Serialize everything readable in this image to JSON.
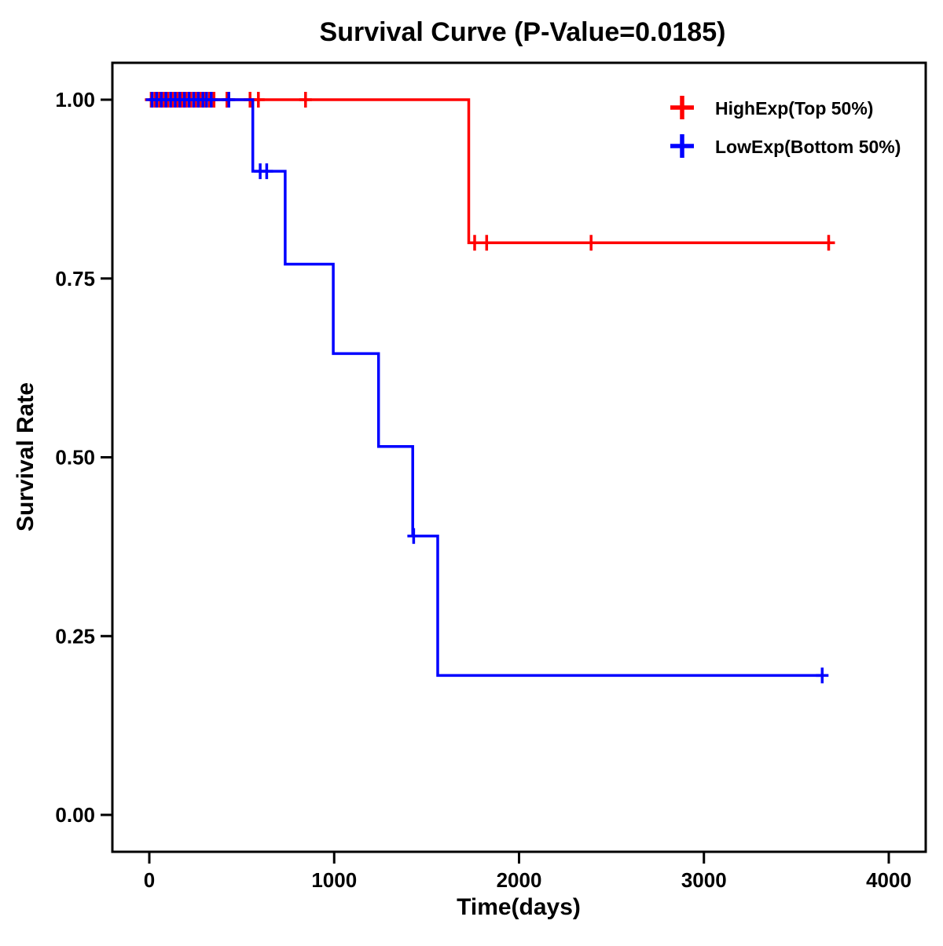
{
  "chart_data": {
    "type": "line",
    "subtype": "kaplan-meier-step",
    "title": "Survival Curve (P-Value=0.0185)",
    "xlabel": "Time(days)",
    "ylabel": "Survival Rate",
    "xlim": [
      -230,
      4200
    ],
    "ylim": [
      -0.05,
      1.06
    ],
    "grid": false,
    "legend_position": "top-right",
    "x_ticks": [
      {
        "value": 0,
        "label": "0"
      },
      {
        "value": 1000,
        "label": "1000"
      },
      {
        "value": 2000,
        "label": "2000"
      },
      {
        "value": 3000,
        "label": "3000"
      },
      {
        "value": 4000,
        "label": "4000"
      }
    ],
    "y_ticks": [
      {
        "value": 0.0,
        "label": "0.00"
      },
      {
        "value": 0.25,
        "label": "0.25"
      },
      {
        "value": 0.5,
        "label": "0.50"
      },
      {
        "value": 0.75,
        "label": "0.75"
      },
      {
        "value": 1.0,
        "label": "1.00"
      }
    ],
    "series": [
      {
        "name": "HighExp(Top 50%)",
        "color": "#FF0000",
        "steps": [
          [
            0,
            1.0
          ],
          [
            1728,
            1.0
          ],
          [
            1728,
            0.8
          ],
          [
            3675,
            0.8
          ]
        ],
        "censor_marks": [
          [
            10,
            1.0
          ],
          [
            30,
            1.0
          ],
          [
            55,
            1.0
          ],
          [
            80,
            1.0
          ],
          [
            100,
            1.0
          ],
          [
            125,
            1.0
          ],
          [
            150,
            1.0
          ],
          [
            175,
            1.0
          ],
          [
            200,
            1.0
          ],
          [
            225,
            1.0
          ],
          [
            250,
            1.0
          ],
          [
            275,
            1.0
          ],
          [
            300,
            1.0
          ],
          [
            325,
            1.0
          ],
          [
            350,
            1.0
          ],
          [
            420,
            1.0
          ],
          [
            545,
            1.0
          ],
          [
            590,
            1.0
          ],
          [
            845,
            1.0
          ],
          [
            1760,
            0.8
          ],
          [
            1825,
            0.8
          ],
          [
            2390,
            0.8
          ],
          [
            3675,
            0.8
          ]
        ]
      },
      {
        "name": "LowExp(Bottom 50%)",
        "color": "#0000FF",
        "steps": [
          [
            0,
            1.0
          ],
          [
            560,
            1.0
          ],
          [
            560,
            0.9
          ],
          [
            735,
            0.9
          ],
          [
            735,
            0.77
          ],
          [
            995,
            0.77
          ],
          [
            995,
            0.645
          ],
          [
            1240,
            0.645
          ],
          [
            1240,
            0.515
          ],
          [
            1425,
            0.515
          ],
          [
            1425,
            0.39
          ],
          [
            1560,
            0.39
          ],
          [
            1560,
            0.195
          ],
          [
            3640,
            0.195
          ]
        ],
        "censor_marks": [
          [
            15,
            1.0
          ],
          [
            40,
            1.0
          ],
          [
            65,
            1.0
          ],
          [
            90,
            1.0
          ],
          [
            115,
            1.0
          ],
          [
            140,
            1.0
          ],
          [
            165,
            1.0
          ],
          [
            190,
            1.0
          ],
          [
            215,
            1.0
          ],
          [
            240,
            1.0
          ],
          [
            265,
            1.0
          ],
          [
            290,
            1.0
          ],
          [
            310,
            1.0
          ],
          [
            335,
            1.0
          ],
          [
            430,
            1.0
          ],
          [
            600,
            0.9
          ],
          [
            635,
            0.9
          ],
          [
            1430,
            0.39
          ],
          [
            3640,
            0.195
          ]
        ]
      }
    ]
  }
}
